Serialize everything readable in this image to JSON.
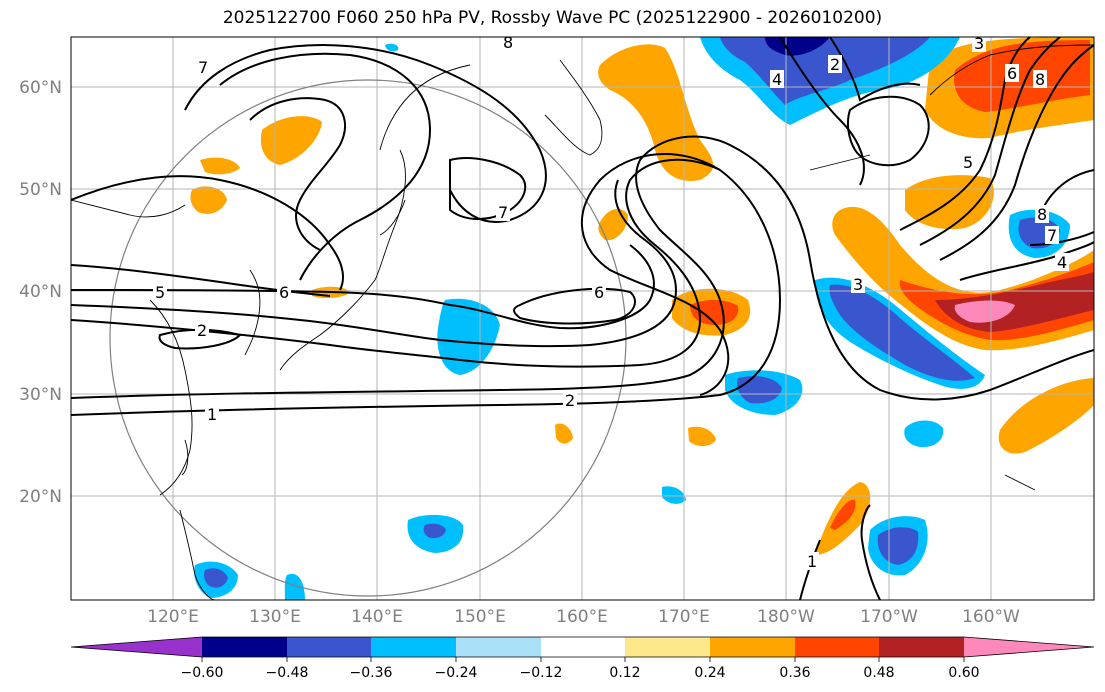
{
  "title": "2025122700 F060 250 hPa PV, Rossby Wave PC (2025122900 - 2026010200)",
  "axes": {
    "lat_labels": [
      "60°N",
      "50°N",
      "40°N",
      "30°N",
      "20°N"
    ],
    "lon_labels": [
      "120°E",
      "130°E",
      "140°E",
      "150°E",
      "160°E",
      "170°E",
      "180°W",
      "170°W",
      "160°W"
    ]
  },
  "contour_labels": [
    "8",
    "7",
    "2",
    "4",
    "3",
    "6",
    "8",
    "5",
    "7",
    "8",
    "7",
    "4",
    "5",
    "6",
    "6",
    "3",
    "2",
    "1",
    "2",
    "1"
  ],
  "colorbar": {
    "tick_labels": [
      "−0.60",
      "−0.48",
      "−0.36",
      "−0.24",
      "−0.12",
      "0.12",
      "0.24",
      "0.36",
      "0.48",
      "0.60"
    ],
    "colors": [
      "#9932cc",
      "#00008b",
      "#3a56cf",
      "#00bfff",
      "#aadff8",
      "#ffffff",
      "#fde98c",
      "#ffa500",
      "#ff4500",
      "#b22222",
      "#ff88bb"
    ]
  },
  "colors": {
    "neg_strong": "#3a56cf",
    "neg_mid": "#00bfff",
    "neg_light": "#aadff8",
    "pos_light": "#fde98c",
    "pos_mid": "#ffa500",
    "pos_strong": "#ff4500",
    "pos_darker": "#b22222",
    "pos_max": "#ff88bb"
  }
}
